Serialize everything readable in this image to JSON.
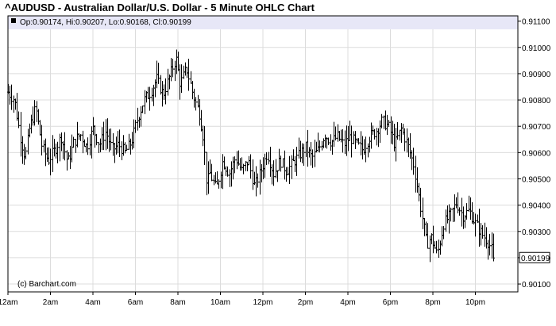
{
  "chart_data": {
    "type": "ohlc",
    "title": "^AUDUSD - Australian Dollar/U.S. Dollar - 5 Minute OHLC Chart",
    "legend": {
      "open_label": "Op:0.90174",
      "high_label": "Hi:0.90207",
      "low_label": "Lo:0.90168",
      "close_label": "Cl:0.90199"
    },
    "last_price_label": "0.90199",
    "copyright": "(c) Barchart.com",
    "ylim": [
      0.9007,
      0.9112
    ],
    "y_ticks": [
      0.901,
      0.902,
      0.903,
      0.904,
      0.905,
      0.906,
      0.907,
      0.908,
      0.909,
      0.91,
      0.911
    ],
    "y_tick_labels": [
      "0.90100",
      "0.90200",
      "0.90300",
      "0.90400",
      "0.90500",
      "0.90600",
      "0.90700",
      "0.90800",
      "0.90900",
      "0.91000",
      "0.91100"
    ],
    "x_range_hours": [
      0,
      24
    ],
    "x_ticks_hours": [
      0,
      2,
      4,
      6,
      8,
      10,
      12,
      14,
      16,
      18,
      20,
      22
    ],
    "x_tick_labels": [
      "12am",
      "2am",
      "4am",
      "6am",
      "8am",
      "10am",
      "12pm",
      "2pm",
      "4pm",
      "6pm",
      "8pm",
      "10pm"
    ],
    "grid": true,
    "close_anchors": [
      [
        0.0,
        0.9083
      ],
      [
        0.3,
        0.908
      ],
      [
        0.6,
        0.9065
      ],
      [
        0.8,
        0.9058
      ],
      [
        1.0,
        0.9069
      ],
      [
        1.3,
        0.9077
      ],
      [
        1.6,
        0.9062
      ],
      [
        1.9,
        0.9057
      ],
      [
        2.2,
        0.9061
      ],
      [
        2.5,
        0.9066
      ],
      [
        2.8,
        0.9056
      ],
      [
        3.1,
        0.9064
      ],
      [
        3.4,
        0.9067
      ],
      [
        3.7,
        0.9062
      ],
      [
        4.0,
        0.9069
      ],
      [
        4.3,
        0.9063
      ],
      [
        4.6,
        0.9068
      ],
      [
        4.9,
        0.9061
      ],
      [
        5.2,
        0.9063
      ],
      [
        5.5,
        0.906
      ],
      [
        5.8,
        0.9064
      ],
      [
        6.1,
        0.9073
      ],
      [
        6.4,
        0.908
      ],
      [
        6.7,
        0.9083
      ],
      [
        7.0,
        0.9088
      ],
      [
        7.3,
        0.9082
      ],
      [
        7.6,
        0.9089
      ],
      [
        7.9,
        0.9096
      ],
      [
        8.1,
        0.9086
      ],
      [
        8.4,
        0.9092
      ],
      [
        8.7,
        0.9082
      ],
      [
        9.0,
        0.9075
      ],
      [
        9.2,
        0.9065
      ],
      [
        9.35,
        0.9048
      ],
      [
        9.5,
        0.9052
      ],
      [
        9.8,
        0.9046
      ],
      [
        10.1,
        0.9057
      ],
      [
        10.4,
        0.9052
      ],
      [
        10.7,
        0.9058
      ],
      [
        11.0,
        0.9053
      ],
      [
        11.3,
        0.9057
      ],
      [
        11.6,
        0.9047
      ],
      [
        11.9,
        0.9053
      ],
      [
        12.2,
        0.906
      ],
      [
        12.5,
        0.9052
      ],
      [
        12.8,
        0.9057
      ],
      [
        13.1,
        0.9053
      ],
      [
        13.4,
        0.9056
      ],
      [
        13.7,
        0.9059
      ],
      [
        14.0,
        0.9062
      ],
      [
        14.3,
        0.9058
      ],
      [
        14.6,
        0.9061
      ],
      [
        14.9,
        0.9067
      ],
      [
        15.2,
        0.9064
      ],
      [
        15.5,
        0.9066
      ],
      [
        15.8,
        0.9063
      ],
      [
        16.1,
        0.9066
      ],
      [
        16.4,
        0.9063
      ],
      [
        16.7,
        0.9061
      ],
      [
        17.0,
        0.9066
      ],
      [
        17.3,
        0.9068
      ],
      [
        17.6,
        0.9072
      ],
      [
        17.9,
        0.907
      ],
      [
        18.2,
        0.9063
      ],
      [
        18.5,
        0.9069
      ],
      [
        18.8,
        0.9063
      ],
      [
        19.1,
        0.9055
      ],
      [
        19.3,
        0.9045
      ],
      [
        19.5,
        0.9035
      ],
      [
        19.7,
        0.9025
      ],
      [
        19.9,
        0.9028
      ],
      [
        20.2,
        0.9021
      ],
      [
        20.5,
        0.9033
      ],
      [
        20.8,
        0.9036
      ],
      [
        21.1,
        0.9041
      ],
      [
        21.4,
        0.9036
      ],
      [
        21.7,
        0.9038
      ],
      [
        22.0,
        0.9033
      ],
      [
        22.3,
        0.9029
      ],
      [
        22.6,
        0.9026
      ],
      [
        22.9,
        0.902
      ]
    ]
  }
}
